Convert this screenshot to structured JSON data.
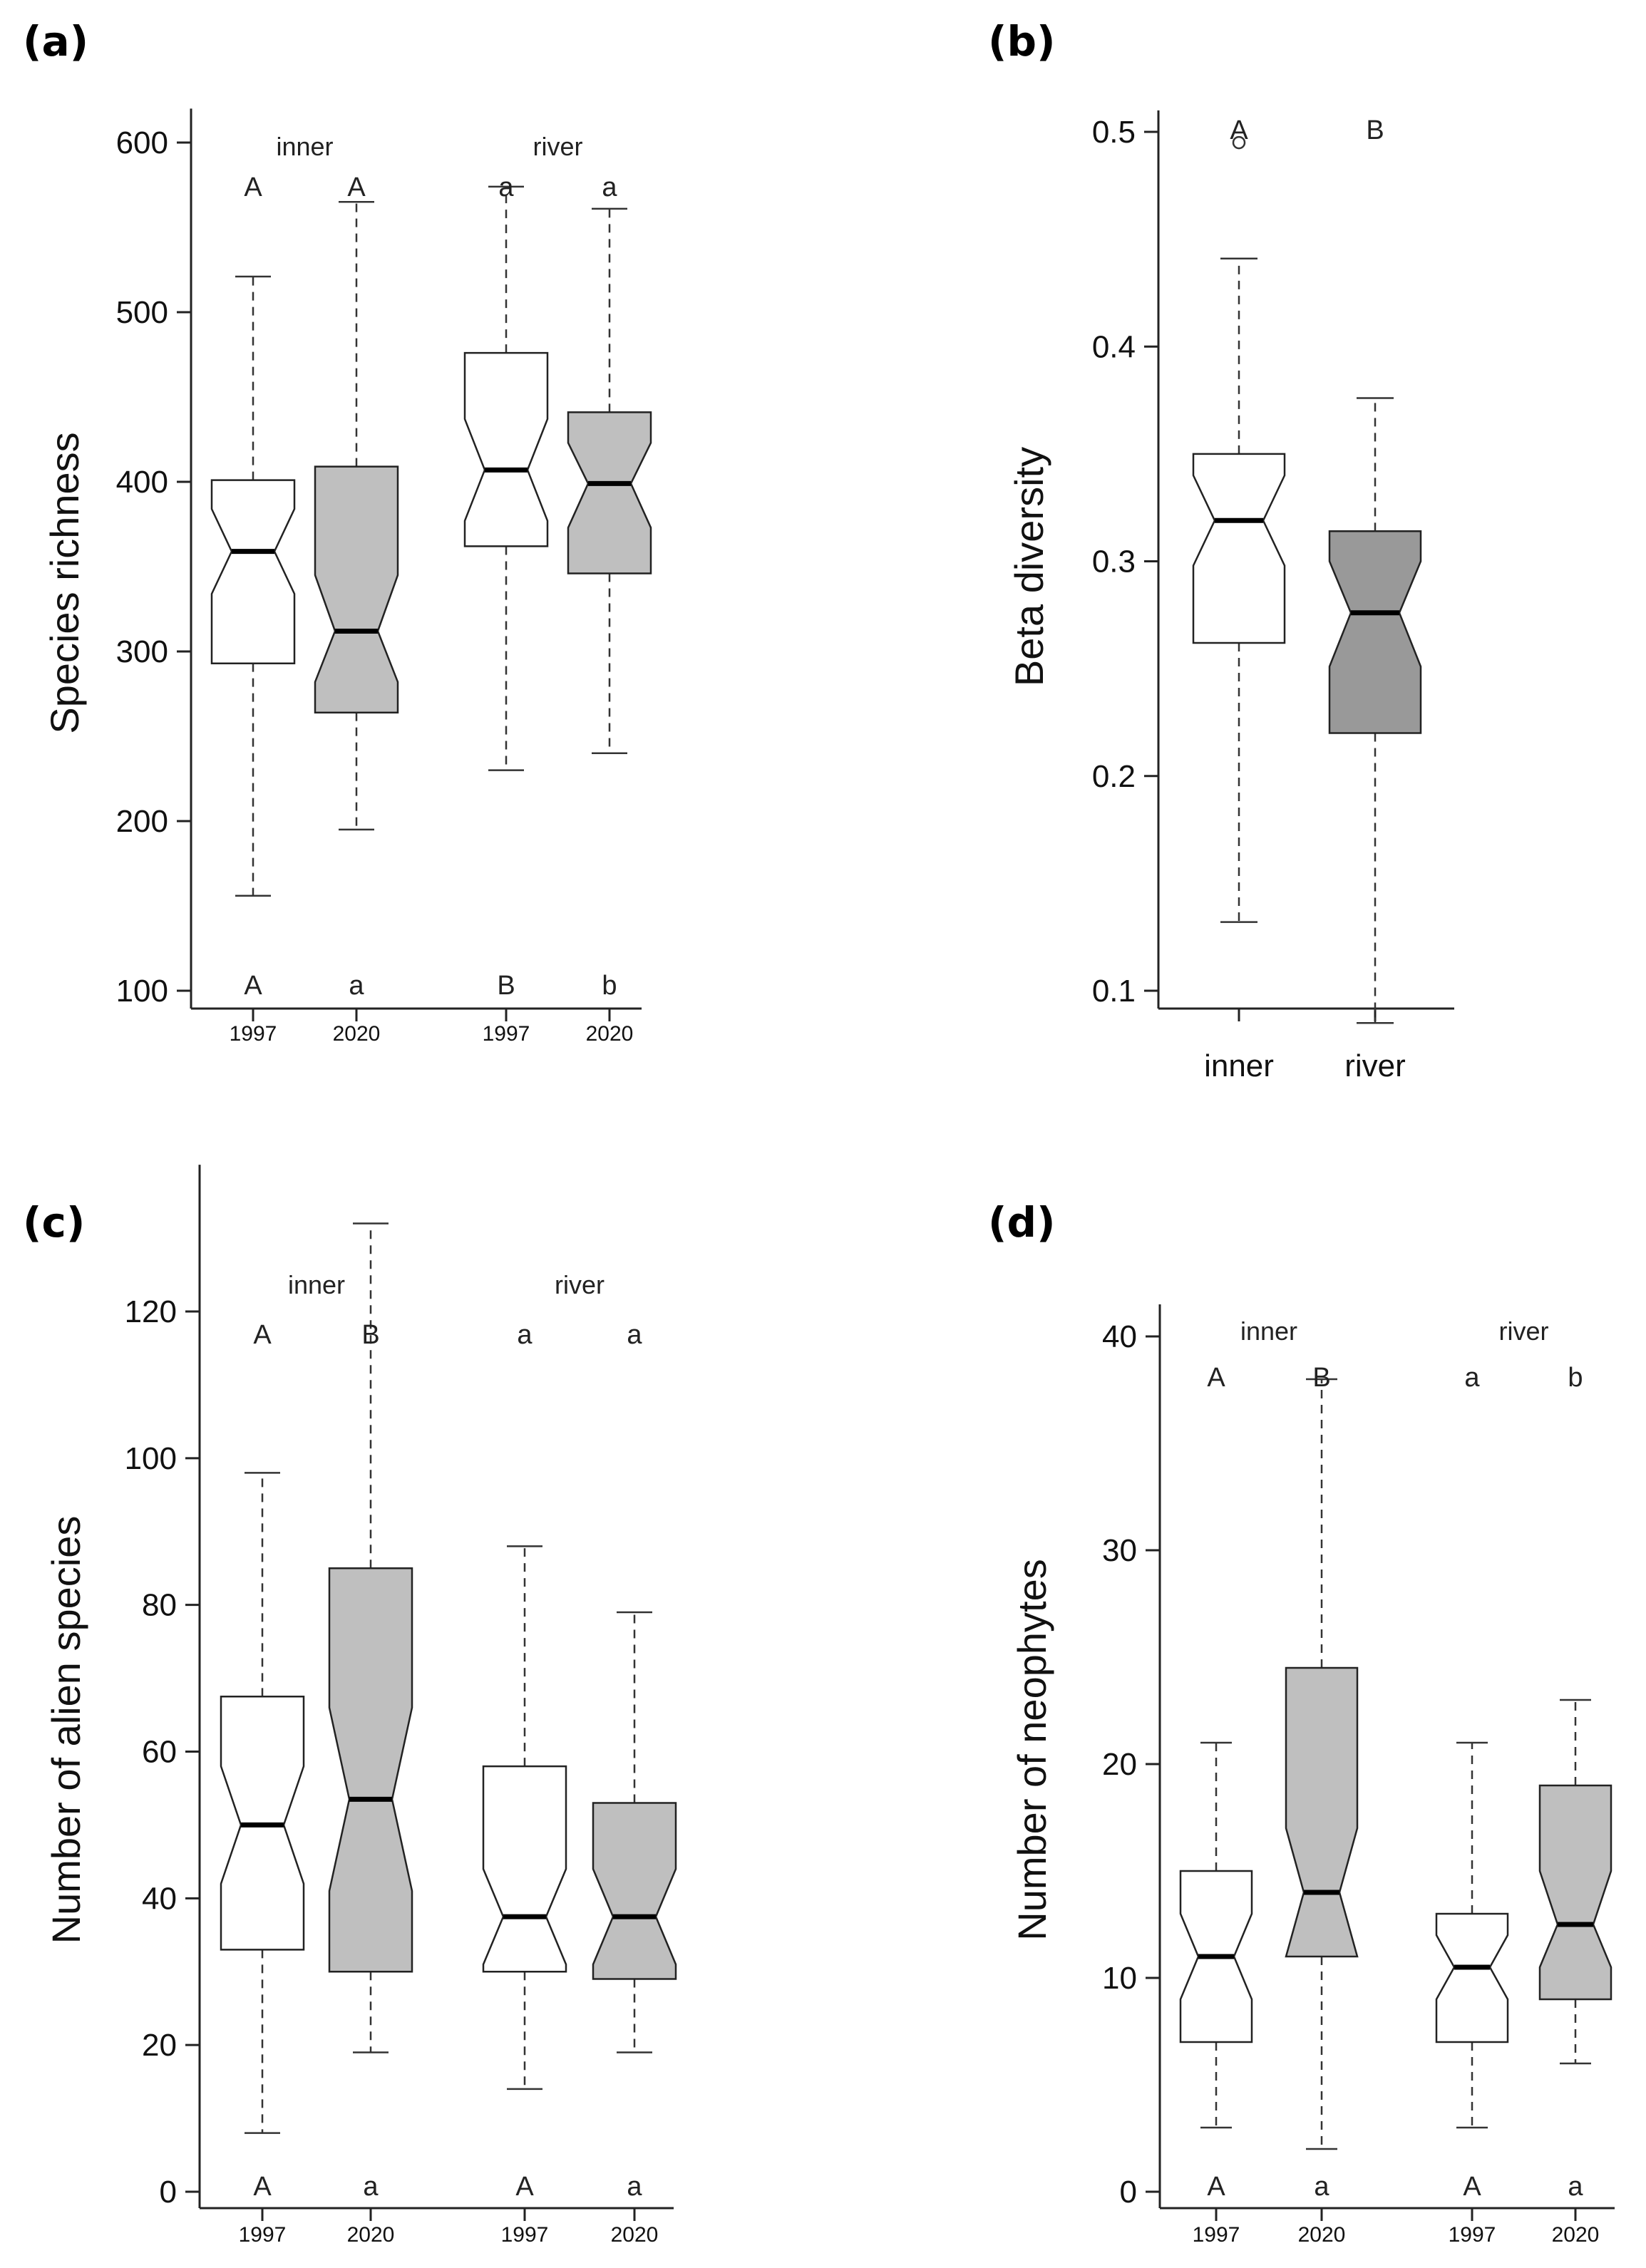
{
  "chart_data": [
    {
      "type": "boxplot",
      "panel_label": "(a)",
      "ylabel": "Species richness",
      "ylim": [
        90,
        620
      ],
      "yticks": [
        100,
        200,
        300,
        400,
        500,
        600
      ],
      "notched": true,
      "groups": [
        {
          "label": "inner",
          "over": [
            0,
            1
          ]
        },
        {
          "label": "river",
          "over": [
            2,
            3
          ]
        }
      ],
      "boxes": [
        {
          "category": "1997",
          "group": "inner",
          "fill": "#ffffff",
          "whisker_low": 156,
          "q1": 293,
          "median": 359,
          "q3": 401,
          "whisker_high": 521,
          "notch_low": 334,
          "notch_high": 384,
          "top_letter": "A",
          "bottom_letter": "A"
        },
        {
          "category": "2020",
          "group": "inner",
          "fill": "#bfbfbf",
          "whisker_low": 195,
          "q1": 264,
          "median": 312,
          "q3": 409,
          "whisker_high": 565,
          "notch_low": 282,
          "notch_high": 345,
          "top_letter": "A",
          "bottom_letter": "a"
        },
        {
          "category": "1997",
          "group": "river",
          "fill": "#ffffff",
          "whisker_low": 230,
          "q1": 362,
          "median": 407,
          "q3": 476,
          "whisker_high": 574,
          "notch_low": 377,
          "notch_high": 437,
          "top_letter": "a",
          "bottom_letter": "B"
        },
        {
          "category": "2020",
          "group": "river",
          "fill": "#bfbfbf",
          "whisker_low": 240,
          "q1": 346,
          "median": 399,
          "q3": 441,
          "whisker_high": 561,
          "notch_low": 373,
          "notch_high": 423,
          "top_letter": "a",
          "bottom_letter": "b"
        }
      ]
    },
    {
      "type": "boxplot",
      "panel_label": "(b)",
      "ylabel": "Beta diversity",
      "ylim": [
        0.07,
        0.51
      ],
      "yticks": [
        0.1,
        0.2,
        0.3,
        0.4,
        0.5
      ],
      "notched": true,
      "boxes": [
        {
          "category": "inner",
          "fill": "#ffffff",
          "whisker_low": 0.132,
          "q1": 0.262,
          "median": 0.319,
          "q3": 0.35,
          "whisker_high": 0.441,
          "notch_low": 0.298,
          "notch_high": 0.34,
          "outliers": [
            0.495
          ],
          "top_letter": "A"
        },
        {
          "category": "river",
          "fill": "#999999",
          "whisker_low": 0.085,
          "q1": 0.22,
          "median": 0.276,
          "q3": 0.314,
          "whisker_high": 0.376,
          "notch_low": 0.251,
          "notch_high": 0.3,
          "top_letter": "B"
        }
      ]
    },
    {
      "type": "boxplot",
      "panel_label": "(c)",
      "ylabel": "Number of alien species",
      "ylim": [
        -5,
        140
      ],
      "yticks": [
        0,
        20,
        40,
        60,
        80,
        100,
        120
      ],
      "notched": true,
      "groups": [
        {
          "label": "inner",
          "over": [
            0,
            1
          ]
        },
        {
          "label": "river",
          "over": [
            2,
            3
          ]
        }
      ],
      "boxes": [
        {
          "category": "1997",
          "group": "inner",
          "fill": "#ffffff",
          "whisker_low": 8,
          "q1": 33,
          "median": 50,
          "q3": 67.5,
          "whisker_high": 98,
          "notch_low": 42,
          "notch_high": 58,
          "top_letter": "A",
          "bottom_letter": "A"
        },
        {
          "category": "2020",
          "group": "inner",
          "fill": "#bfbfbf",
          "whisker_low": 19,
          "q1": 30,
          "median": 53.5,
          "q3": 85,
          "whisker_high": 132,
          "notch_low": 41,
          "notch_high": 66,
          "top_letter": "B",
          "bottom_letter": "a"
        },
        {
          "category": "1997",
          "group": "river",
          "fill": "#ffffff",
          "whisker_low": 14,
          "q1": 30,
          "median": 37.5,
          "q3": 58,
          "whisker_high": 88,
          "notch_low": 31,
          "notch_high": 44,
          "top_letter": "a",
          "bottom_letter": "A"
        },
        {
          "category": "2020",
          "group": "river",
          "fill": "#bfbfbf",
          "whisker_low": 19,
          "q1": 29,
          "median": 37.5,
          "q3": 53,
          "whisker_high": 79,
          "notch_low": 31,
          "notch_high": 44,
          "top_letter": "a",
          "bottom_letter": "a"
        }
      ]
    },
    {
      "type": "boxplot",
      "panel_label": "(d)",
      "ylabel": "Number of neophytes",
      "ylim": [
        -1,
        41.5
      ],
      "yticks": [
        0,
        10,
        20,
        30,
        40
      ],
      "notched": true,
      "groups": [
        {
          "label": "inner",
          "over": [
            0,
            1
          ]
        },
        {
          "label": "river",
          "over": [
            2,
            3
          ]
        }
      ],
      "boxes": [
        {
          "category": "1997",
          "group": "inner",
          "fill": "#ffffff",
          "whisker_low": 3,
          "q1": 7,
          "median": 11,
          "q3": 15,
          "whisker_high": 21,
          "notch_low": 9,
          "notch_high": 13,
          "top_letter": "A",
          "bottom_letter": "A"
        },
        {
          "category": "2020",
          "group": "inner",
          "fill": "#bfbfbf",
          "whisker_low": 2,
          "q1": 11,
          "median": 14,
          "q3": 24.5,
          "whisker_high": 38,
          "notch_low": 11,
          "notch_high": 17,
          "top_letter": "B",
          "bottom_letter": "a"
        },
        {
          "category": "1997",
          "group": "river",
          "fill": "#ffffff",
          "whisker_low": 3,
          "q1": 7,
          "median": 10.5,
          "q3": 13,
          "whisker_high": 21,
          "notch_low": 9,
          "notch_high": 12,
          "top_letter": "a",
          "bottom_letter": "A"
        },
        {
          "category": "2020",
          "group": "river",
          "fill": "#bfbfbf",
          "whisker_low": 6,
          "q1": 9,
          "median": 12.5,
          "q3": 19,
          "whisker_high": 23,
          "notch_low": 10.5,
          "notch_high": 15,
          "top_letter": "b",
          "bottom_letter": "a"
        }
      ]
    }
  ]
}
